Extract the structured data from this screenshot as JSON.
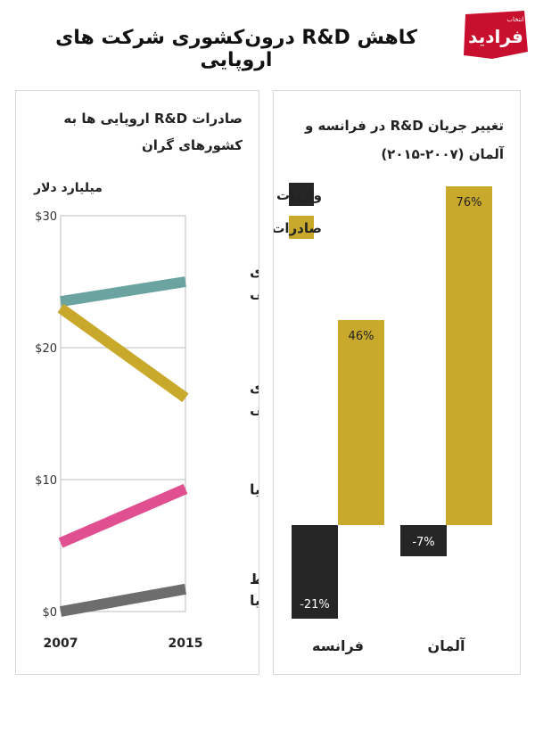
{
  "title": "کاهش R&D درون‌کشوری شرکت های اروپایی",
  "logo": {
    "text": "فرادید",
    "sub": "انتخاب"
  },
  "colors": {
    "teal": "#6aa39f",
    "gold": "#c9a92c",
    "pink": "#e04f8f",
    "gray": "#6d6d6d",
    "black": "#262626",
    "title_red": "#c8102e"
  },
  "chart_data": [
    {
      "type": "line",
      "title_lines": [
        "صادرات R&D اروپایی ها به",
        "کشورهای گران"
      ],
      "ylabel": "میلیارد دلار",
      "x": [
        "2007",
        "2015"
      ],
      "ylim": [
        0,
        30
      ],
      "yticks": [
        "$0",
        "$10",
        "$20",
        "$30"
      ],
      "grid": true,
      "series": [
        {
          "name": "آمریکای شمالی",
          "name_lines": [
            "آمریکای",
            "شمالی"
          ],
          "values": [
            23.5,
            25
          ],
          "color": "#6aa39f"
        },
        {
          "name": "اروپای غربی",
          "name_lines": [
            "اروپای",
            "غربی"
          ],
          "values": [
            23,
            16.2
          ],
          "color": "#c9a92c"
        },
        {
          "name": "آسیا",
          "name_lines": [
            "آسیا"
          ],
          "values": [
            5.2,
            9.3
          ],
          "color": "#e04f8f"
        },
        {
          "name": "دیگر نقاط دنیا",
          "name_lines": [
            "دیگر نقاط",
            "دنیا"
          ],
          "values": [
            0,
            1.7
          ],
          "color": "#6d6d6d"
        }
      ]
    },
    {
      "type": "bar",
      "title_lines": [
        "تغییر جریان R&D در فرانسه و",
        "آلمان (۲۰۰۷-۲۰۱۵)"
      ],
      "categories": [
        "فرانسه",
        "آلمان"
      ],
      "legend": [
        {
          "name": "واردات",
          "color": "#262626"
        },
        {
          "name": "صادرات",
          "color": "#c9a92c"
        }
      ],
      "legend_position": "top-right",
      "ylim": [
        -30,
        80
      ],
      "series": [
        {
          "name": "واردات",
          "values": [
            -21,
            -7
          ],
          "labels": [
            "-21%",
            "-7%"
          ],
          "color": "#262626"
        },
        {
          "name": "صادرات",
          "values": [
            46,
            76
          ],
          "labels": [
            "46%",
            "76%"
          ],
          "color": "#c9a92c"
        }
      ]
    }
  ]
}
